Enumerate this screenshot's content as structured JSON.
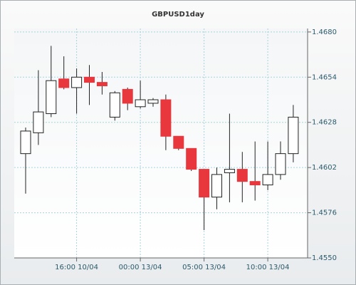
{
  "chart_data": {
    "type": "candlestick",
    "title": "GBPUSD1day",
    "categories": [
      null,
      null,
      null,
      null,
      "16:00 10/04",
      null,
      null,
      null,
      null,
      "00:00 13/04",
      null,
      null,
      null,
      null,
      "05:00 13/04",
      null,
      null,
      null,
      null,
      "10:00 13/04",
      null,
      null
    ],
    "open": [
      1.461,
      1.4622,
      1.4633,
      1.4653,
      1.4648,
      1.4654,
      1.4651,
      1.4631,
      1.4647,
      1.4637,
      1.4639,
      1.4641,
      1.462,
      1.4613,
      1.4601,
      1.4585,
      1.4599,
      1.4601,
      1.4594,
      1.4592,
      1.4598,
      1.461
    ],
    "high": [
      1.4625,
      1.4658,
      1.4672,
      1.4666,
      1.4659,
      1.4661,
      1.4657,
      1.4646,
      1.4648,
      1.4652,
      1.4642,
      1.4644,
      1.462,
      1.4613,
      1.4601,
      1.4602,
      1.4633,
      1.4611,
      1.4617,
      1.4617,
      1.4617,
      1.4638
    ],
    "low": [
      1.4587,
      1.4615,
      1.4631,
      1.4647,
      1.4633,
      1.4638,
      1.4644,
      1.4629,
      1.4635,
      1.4636,
      1.4637,
      1.4612,
      1.4612,
      1.46,
      1.4566,
      1.4578,
      1.4582,
      1.4582,
      1.4583,
      1.4589,
      1.4595,
      1.4605
    ],
    "close": [
      1.4623,
      1.4634,
      1.4652,
      1.4648,
      1.4654,
      1.4651,
      1.4649,
      1.4645,
      1.4639,
      1.4641,
      1.4641,
      1.462,
      1.4613,
      1.4601,
      1.4585,
      1.4598,
      1.4601,
      1.4594,
      1.4592,
      1.4598,
      1.461,
      1.4631
    ],
    "up_color": "#ffffff",
    "down_color": "#e8373d",
    "ylim": [
      1.455,
      1.4682
    ],
    "yticks": [
      {
        "value": 1.455,
        "label": "1.4550"
      },
      {
        "value": 1.4576,
        "label": "1.4576"
      },
      {
        "value": 1.4602,
        "label": "1.4602"
      },
      {
        "value": 1.4628,
        "label": "1.4628"
      },
      {
        "value": 1.4654,
        "label": "1.4654"
      },
      {
        "value": 1.468,
        "label": "1.4680"
      }
    ],
    "grid": true
  }
}
